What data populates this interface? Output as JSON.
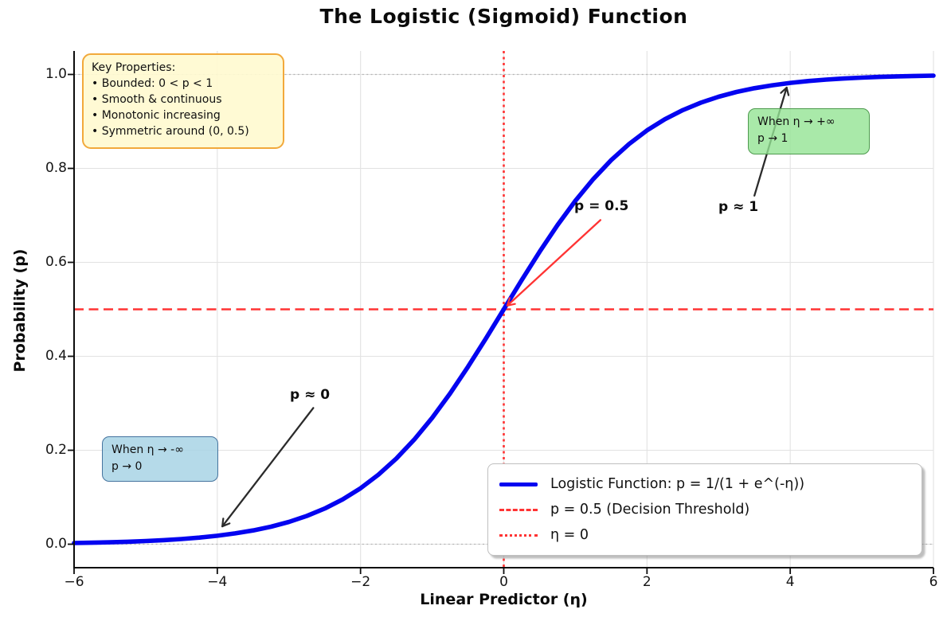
{
  "title": "The Logistic (Sigmoid) Function",
  "axes": {
    "xlabel": "Linear Predictor (η)",
    "ylabel": "Probability (p)",
    "x_tick_labels": [
      "−6",
      "−4",
      "−2",
      "0",
      "2",
      "4",
      "6"
    ],
    "x_tick_values": [
      -6,
      -4,
      -2,
      0,
      2,
      4,
      6
    ],
    "y_tick_labels": [
      "0.0",
      "0.2",
      "0.4",
      "0.6",
      "0.8",
      "1.0"
    ],
    "y_tick_values": [
      0,
      0.2,
      0.4,
      0.6,
      0.8,
      1.0
    ]
  },
  "key_properties_box": {
    "title": "Key Properties:",
    "bullets": [
      "• Bounded: 0 < p < 1",
      "• Smooth & continuous",
      "• Monotonic increasing",
      "• Symmetric around (0, 0.5)"
    ]
  },
  "callout_positive": {
    "line1": "When η → +∞",
    "line2": "p → 1"
  },
  "callout_negative": {
    "line1": "When η → -∞",
    "line2": "p → 0"
  },
  "point_labels": {
    "p_half": "p = 0.5",
    "p_approx_one": "p ≈ 1",
    "p_approx_zero": "p ≈ 0"
  },
  "legend": {
    "items": [
      {
        "label": "Logistic Function: p = 1/(1 + e^(-η))",
        "swatch": "solid",
        "color": "#0404f0"
      },
      {
        "label": "p = 0.5 (Decision Threshold)",
        "swatch": "dashed",
        "color": "#ff3333"
      },
      {
        "label": "η = 0",
        "swatch": "dotted",
        "color": "#ff3333"
      }
    ]
  },
  "colors": {
    "curve": "#0404f0",
    "threshold": "#ff3333",
    "grid": "#e2e2e2",
    "asymptote": "#b3b3b3",
    "spine": "#0d0d0d",
    "arrow_black": "#2b2b2b"
  },
  "chart_data": {
    "type": "line",
    "title": "The Logistic (Sigmoid) Function",
    "xlabel": "Linear Predictor (η)",
    "ylabel": "Probability (p)",
    "xlim": [
      -6,
      6
    ],
    "ylim": [
      -0.05,
      1.05
    ],
    "grid": true,
    "legend_position": "lower right",
    "series": [
      {
        "name": "Logistic Function: p = 1/(1 + e^(-η))",
        "color": "#0404f0",
        "points": [
          [
            -6,
            0.0025
          ],
          [
            -5.75,
            0.0032
          ],
          [
            -5.5,
            0.0041
          ],
          [
            -5.25,
            0.0052
          ],
          [
            -5,
            0.0067
          ],
          [
            -4.75,
            0.0086
          ],
          [
            -4.5,
            0.0111
          ],
          [
            -4.25,
            0.0141
          ],
          [
            -4,
            0.018
          ],
          [
            -3.75,
            0.023
          ],
          [
            -3.5,
            0.0293
          ],
          [
            -3.25,
            0.0373
          ],
          [
            -3,
            0.0474
          ],
          [
            -2.75,
            0.0601
          ],
          [
            -2.5,
            0.0759
          ],
          [
            -2.25,
            0.0953
          ],
          [
            -2,
            0.1192
          ],
          [
            -1.75,
            0.148
          ],
          [
            -1.5,
            0.1824
          ],
          [
            -1.25,
            0.2227
          ],
          [
            -1,
            0.2689
          ],
          [
            -0.75,
            0.3208
          ],
          [
            -0.5,
            0.3775
          ],
          [
            -0.25,
            0.4378
          ],
          [
            0,
            0.5
          ],
          [
            0.25,
            0.5622
          ],
          [
            0.5,
            0.6225
          ],
          [
            0.75,
            0.6792
          ],
          [
            1,
            0.7311
          ],
          [
            1.25,
            0.7773
          ],
          [
            1.5,
            0.8176
          ],
          [
            1.75,
            0.852
          ],
          [
            2,
            0.8808
          ],
          [
            2.25,
            0.9047
          ],
          [
            2.5,
            0.9241
          ],
          [
            2.75,
            0.9399
          ],
          [
            3,
            0.9526
          ],
          [
            3.25,
            0.9627
          ],
          [
            3.5,
            0.9707
          ],
          [
            3.75,
            0.977
          ],
          [
            4,
            0.982
          ],
          [
            4.25,
            0.9859
          ],
          [
            4.5,
            0.9889
          ],
          [
            4.75,
            0.9914
          ],
          [
            5,
            0.9933
          ],
          [
            5.25,
            0.9948
          ],
          [
            5.5,
            0.9959
          ],
          [
            5.75,
            0.9968
          ],
          [
            6,
            0.9975
          ]
        ]
      }
    ],
    "reference_lines": [
      {
        "label": "p = 0.5 (Decision Threshold)",
        "orientation": "horizontal",
        "value": 0.5,
        "style": "dashed",
        "color": "#ff3333",
        "width": 2.6
      },
      {
        "label": "η = 0",
        "orientation": "vertical",
        "value": 0,
        "style": "dotted",
        "color": "#ff3333",
        "width": 2.6
      },
      {
        "label": "asymptote p = 0",
        "orientation": "horizontal",
        "value": 0,
        "style": "fine-dotted",
        "color": "#b3b3b3",
        "width": 1.3
      },
      {
        "label": "asymptote p = 1",
        "orientation": "horizontal",
        "value": 1,
        "style": "fine-dotted",
        "color": "#b3b3b3",
        "width": 1.3
      }
    ],
    "annotations": [
      {
        "text": "p = 0.5",
        "text_pos": [
          1.0,
          0.7
        ],
        "arrow_from": [
          1.35,
          0.69
        ],
        "arrow_to": [
          0.05,
          0.508
        ],
        "color": "#ff3333"
      },
      {
        "text": "p ≈ 1",
        "text_pos": [
          3.0,
          0.7
        ],
        "arrow_from": [
          3.5,
          0.742
        ],
        "arrow_to": [
          3.95,
          0.972
        ],
        "color": "#2b2b2b"
      },
      {
        "text": "p ≈ 0",
        "text_pos": [
          -3.0,
          0.3
        ],
        "arrow_from": [
          -2.66,
          0.29
        ],
        "arrow_to": [
          -3.93,
          0.038
        ],
        "color": "#2b2b2b"
      }
    ]
  }
}
